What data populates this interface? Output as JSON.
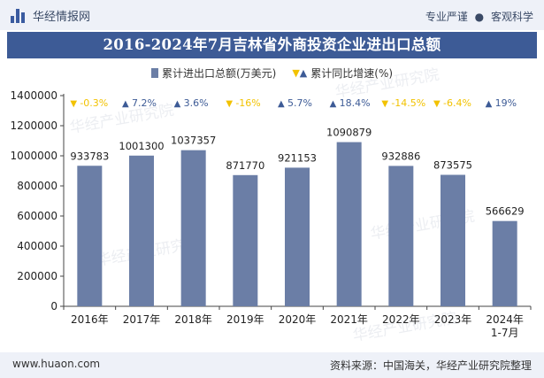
{
  "header": {
    "brand": "华经情报网",
    "slogan_left": "专业严谨",
    "slogan_sep": "●",
    "slogan_right": "客观科学"
  },
  "chart_data": {
    "type": "bar",
    "title": "2016-2024年7月吉林省外商投资企业进出口总额",
    "categories": [
      "2016年",
      "2017年",
      "2018年",
      "2019年",
      "2020年",
      "2021年",
      "2022年",
      "2023年",
      "2024年\n1-7月"
    ],
    "series": [
      {
        "name": "累计进出口总额(万美元)",
        "values": [
          933783,
          1001300,
          1037357,
          871770,
          921153,
          1090879,
          932886,
          873575,
          566629
        ]
      },
      {
        "name": "累计同比增速(%)",
        "values": [
          -0.3,
          7.2,
          3.6,
          -16,
          5.7,
          18.4,
          -14.5,
          -6.4,
          19
        ]
      }
    ],
    "growth_labels": [
      "-0.3%",
      "7.2%",
      "3.6%",
      "-16%",
      "5.7%",
      "18.4%",
      "-14.5%",
      "-6.4%",
      "19%"
    ],
    "yticks": [
      "0",
      "200000",
      "400000",
      "600000",
      "800000",
      "1000000",
      "1200000",
      "1400000"
    ],
    "ylim": [
      0,
      1400000
    ],
    "xlabel": "",
    "ylabel": "",
    "colors": {
      "bar": "#6b7ea6",
      "up": "#3d5b96",
      "down": "#f2c200",
      "value_label": "#222222",
      "axis": "#444444"
    }
  },
  "legend": {
    "bar_label": "累计进出口总额(万美元)",
    "growth_label": "累计同比增速(%)"
  },
  "watermark": "华经产业研究院",
  "footer": {
    "url": "www.huaon.com",
    "source": "资料来源：中国海关，华经产业研究院整理"
  }
}
